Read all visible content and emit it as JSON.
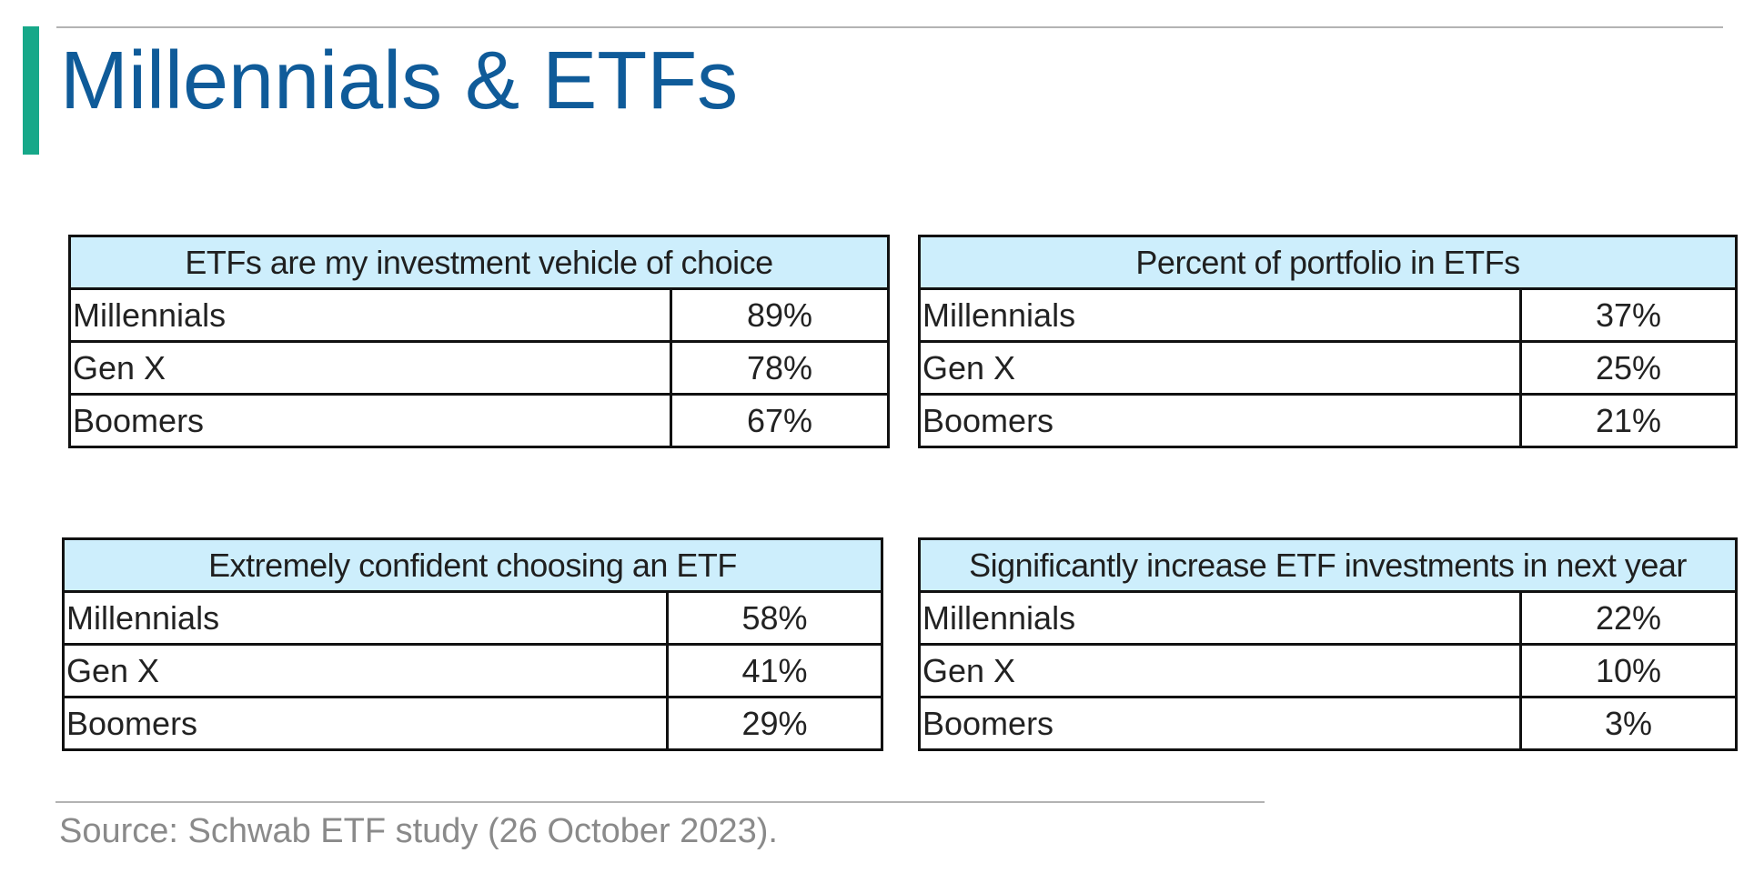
{
  "slide": {
    "title": "Millennials & ETFs",
    "accent_color": "#17a889",
    "title_color": "#0f5b99",
    "header_fill_color": "#cdeefc"
  },
  "tables": [
    {
      "header": "ETFs are my investment vehicle of choice",
      "rows": [
        {
          "label": "Millennials",
          "value": "89%"
        },
        {
          "label": "Gen X",
          "value": "78%"
        },
        {
          "label": "Boomers",
          "value": "67%"
        }
      ]
    },
    {
      "header": "Percent of portfolio in ETFs",
      "rows": [
        {
          "label": "Millennials",
          "value": "37%"
        },
        {
          "label": "Gen X",
          "value": "25%"
        },
        {
          "label": "Boomers",
          "value": "21%"
        }
      ]
    },
    {
      "header": "Extremely confident choosing an ETF",
      "rows": [
        {
          "label": "Millennials",
          "value": "58%"
        },
        {
          "label": "Gen X",
          "value": "41%"
        },
        {
          "label": "Boomers",
          "value": "29%"
        }
      ]
    },
    {
      "header": "Significantly increase ETF investments in next year",
      "rows": [
        {
          "label": "Millennials",
          "value": "22%"
        },
        {
          "label": "Gen X",
          "value": "10%"
        },
        {
          "label": "Boomers",
          "value": "3%"
        }
      ]
    }
  ],
  "footer": {
    "source": "Source: Schwab ETF study (26 October 2023)."
  }
}
